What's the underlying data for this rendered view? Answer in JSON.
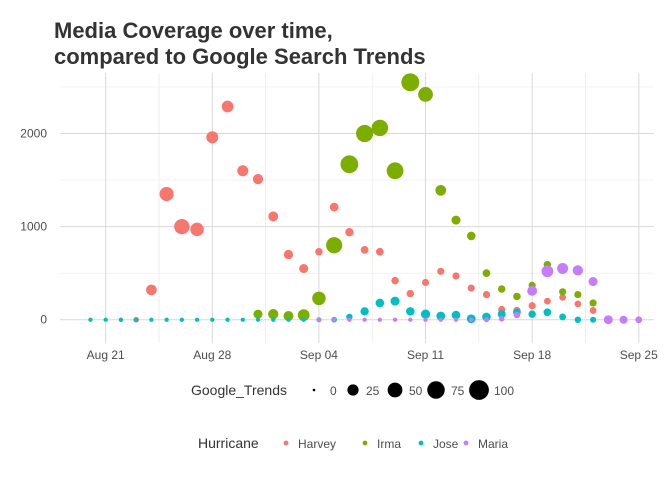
{
  "chart_data": {
    "type": "scatter",
    "title": [
      "Media Coverage over time,",
      "compared to Google Search Trends"
    ],
    "xlabel": "",
    "ylabel": "",
    "x_range": [
      "2017-08-18",
      "2017-09-26"
    ],
    "y_range": [
      -250,
      2650
    ],
    "x_ticks": [
      {
        "date": "2017-08-21",
        "label": "Aug 21"
      },
      {
        "date": "2017-08-28",
        "label": "Aug 28"
      },
      {
        "date": "2017-09-04",
        "label": "Sep 04"
      },
      {
        "date": "2017-09-11",
        "label": "Sep 11"
      },
      {
        "date": "2017-09-18",
        "label": "Sep 18"
      },
      {
        "date": "2017-09-25",
        "label": "Sep 25"
      }
    ],
    "y_ticks": [
      0,
      1000,
      2000
    ],
    "grid": true,
    "series": [
      {
        "name": "Harvey",
        "color": "#F8766D",
        "points": [
          {
            "x": "2017-08-20",
            "y": 0,
            "size": 0
          },
          {
            "x": "2017-08-21",
            "y": 0,
            "size": 0
          },
          {
            "x": "2017-08-22",
            "y": 0,
            "size": 1
          },
          {
            "x": "2017-08-23",
            "y": 0,
            "size": 3
          },
          {
            "x": "2017-08-24",
            "y": 320,
            "size": 22
          },
          {
            "x": "2017-08-25",
            "y": 1350,
            "size": 45
          },
          {
            "x": "2017-08-26",
            "y": 1000,
            "size": 55
          },
          {
            "x": "2017-08-27",
            "y": 970,
            "size": 40
          },
          {
            "x": "2017-08-28",
            "y": 1960,
            "size": 30
          },
          {
            "x": "2017-08-29",
            "y": 2290,
            "size": 28
          },
          {
            "x": "2017-08-30",
            "y": 1600,
            "size": 24
          },
          {
            "x": "2017-08-31",
            "y": 1510,
            "size": 20
          },
          {
            "x": "2017-09-01",
            "y": 1110,
            "size": 18
          },
          {
            "x": "2017-09-02",
            "y": 700,
            "size": 15
          },
          {
            "x": "2017-09-03",
            "y": 550,
            "size": 14
          },
          {
            "x": "2017-09-04",
            "y": 730,
            "size": 8
          },
          {
            "x": "2017-09-05",
            "y": 1210,
            "size": 13
          },
          {
            "x": "2017-09-06",
            "y": 940,
            "size": 11
          },
          {
            "x": "2017-09-07",
            "y": 750,
            "size": 9
          },
          {
            "x": "2017-09-08",
            "y": 730,
            "size": 9
          },
          {
            "x": "2017-09-09",
            "y": 420,
            "size": 8
          },
          {
            "x": "2017-09-10",
            "y": 280,
            "size": 8
          },
          {
            "x": "2017-09-11",
            "y": 400,
            "size": 7
          },
          {
            "x": "2017-09-12",
            "y": 520,
            "size": 7
          },
          {
            "x": "2017-09-13",
            "y": 470,
            "size": 7
          },
          {
            "x": "2017-09-14",
            "y": 340,
            "size": 7
          },
          {
            "x": "2017-09-15",
            "y": 270,
            "size": 7
          },
          {
            "x": "2017-09-16",
            "y": 110,
            "size": 7
          },
          {
            "x": "2017-09-17",
            "y": 100,
            "size": 7
          },
          {
            "x": "2017-09-18",
            "y": 150,
            "size": 7
          },
          {
            "x": "2017-09-19",
            "y": 200,
            "size": 6
          },
          {
            "x": "2017-09-20",
            "y": 240,
            "size": 6
          },
          {
            "x": "2017-09-21",
            "y": 170,
            "size": 6
          },
          {
            "x": "2017-09-22",
            "y": 100,
            "size": 6
          },
          {
            "x": "2017-09-23",
            "y": 0,
            "size": 5
          },
          {
            "x": "2017-09-24",
            "y": 0,
            "size": 5
          },
          {
            "x": "2017-09-25",
            "y": 0,
            "size": 4
          }
        ]
      },
      {
        "name": "Irma",
        "color": "#7CAE00",
        "points": [
          {
            "x": "2017-08-31",
            "y": 60,
            "size": 14
          },
          {
            "x": "2017-09-01",
            "y": 60,
            "size": 20
          },
          {
            "x": "2017-09-02",
            "y": 40,
            "size": 18
          },
          {
            "x": "2017-09-03",
            "y": 50,
            "size": 28
          },
          {
            "x": "2017-09-04",
            "y": 230,
            "size": 40
          },
          {
            "x": "2017-09-05",
            "y": 800,
            "size": 62
          },
          {
            "x": "2017-09-06",
            "y": 1670,
            "size": 78
          },
          {
            "x": "2017-09-07",
            "y": 2000,
            "size": 72
          },
          {
            "x": "2017-09-08",
            "y": 2060,
            "size": 65
          },
          {
            "x": "2017-09-09",
            "y": 1600,
            "size": 68
          },
          {
            "x": "2017-09-10",
            "y": 2550,
            "size": 80
          },
          {
            "x": "2017-09-11",
            "y": 2420,
            "size": 50
          },
          {
            "x": "2017-09-12",
            "y": 1390,
            "size": 22
          },
          {
            "x": "2017-09-13",
            "y": 1070,
            "size": 14
          },
          {
            "x": "2017-09-14",
            "y": 900,
            "size": 12
          },
          {
            "x": "2017-09-15",
            "y": 500,
            "size": 9
          },
          {
            "x": "2017-09-16",
            "y": 330,
            "size": 8
          },
          {
            "x": "2017-09-17",
            "y": 250,
            "size": 8
          },
          {
            "x": "2017-09-18",
            "y": 370,
            "size": 7
          },
          {
            "x": "2017-09-19",
            "y": 590,
            "size": 8
          },
          {
            "x": "2017-09-20",
            "y": 300,
            "size": 7
          },
          {
            "x": "2017-09-21",
            "y": 270,
            "size": 7
          },
          {
            "x": "2017-09-22",
            "y": 180,
            "size": 7
          }
        ]
      },
      {
        "name": "Jose",
        "color": "#00BFC4",
        "points": [
          {
            "x": "2017-08-20",
            "y": 0,
            "size": 1
          },
          {
            "x": "2017-08-21",
            "y": 0,
            "size": 1
          },
          {
            "x": "2017-08-22",
            "y": 0,
            "size": 1
          },
          {
            "x": "2017-08-23",
            "y": 0,
            "size": 1
          },
          {
            "x": "2017-08-24",
            "y": 0,
            "size": 1
          },
          {
            "x": "2017-08-25",
            "y": 0,
            "size": 1
          },
          {
            "x": "2017-08-26",
            "y": 0,
            "size": 1
          },
          {
            "x": "2017-08-27",
            "y": 0,
            "size": 1
          },
          {
            "x": "2017-08-28",
            "y": 0,
            "size": 1
          },
          {
            "x": "2017-08-29",
            "y": 0,
            "size": 1
          },
          {
            "x": "2017-08-30",
            "y": 0,
            "size": 1
          },
          {
            "x": "2017-08-31",
            "y": 0,
            "size": 1
          },
          {
            "x": "2017-09-01",
            "y": 0,
            "size": 1
          },
          {
            "x": "2017-09-02",
            "y": 0,
            "size": 1
          },
          {
            "x": "2017-09-03",
            "y": 0,
            "size": 1
          },
          {
            "x": "2017-09-04",
            "y": 0,
            "size": 2
          },
          {
            "x": "2017-09-05",
            "y": 0,
            "size": 3
          },
          {
            "x": "2017-09-06",
            "y": 30,
            "size": 5
          },
          {
            "x": "2017-09-07",
            "y": 90,
            "size": 11
          },
          {
            "x": "2017-09-08",
            "y": 180,
            "size": 12
          },
          {
            "x": "2017-09-09",
            "y": 200,
            "size": 14
          },
          {
            "x": "2017-09-10",
            "y": 90,
            "size": 12
          },
          {
            "x": "2017-09-11",
            "y": 60,
            "size": 15
          },
          {
            "x": "2017-09-12",
            "y": 40,
            "size": 13
          },
          {
            "x": "2017-09-13",
            "y": 50,
            "size": 12
          },
          {
            "x": "2017-09-14",
            "y": 10,
            "size": 13
          },
          {
            "x": "2017-09-15",
            "y": 30,
            "size": 12
          },
          {
            "x": "2017-09-16",
            "y": 60,
            "size": 10
          },
          {
            "x": "2017-09-17",
            "y": 80,
            "size": 9
          },
          {
            "x": "2017-09-18",
            "y": 60,
            "size": 8
          },
          {
            "x": "2017-09-19",
            "y": 80,
            "size": 9
          },
          {
            "x": "2017-09-20",
            "y": 30,
            "size": 6
          },
          {
            "x": "2017-09-21",
            "y": 0,
            "size": 5
          },
          {
            "x": "2017-09-22",
            "y": 0,
            "size": 4
          },
          {
            "x": "2017-09-23",
            "y": 0,
            "size": 4
          },
          {
            "x": "2017-09-24",
            "y": 0,
            "size": 4
          },
          {
            "x": "2017-09-25",
            "y": 0,
            "size": 3
          }
        ]
      },
      {
        "name": "Maria",
        "color": "#C77CFF",
        "points": [
          {
            "x": "2017-09-04",
            "y": 0,
            "size": 1
          },
          {
            "x": "2017-09-05",
            "y": 0,
            "size": 1
          },
          {
            "x": "2017-09-06",
            "y": 0,
            "size": 1
          },
          {
            "x": "2017-09-07",
            "y": 0,
            "size": 1
          },
          {
            "x": "2017-09-08",
            "y": 0,
            "size": 1
          },
          {
            "x": "2017-09-09",
            "y": 0,
            "size": 1
          },
          {
            "x": "2017-09-10",
            "y": 0,
            "size": 1
          },
          {
            "x": "2017-09-11",
            "y": 0,
            "size": 1
          },
          {
            "x": "2017-09-12",
            "y": 0,
            "size": 1
          },
          {
            "x": "2017-09-13",
            "y": 0,
            "size": 1
          },
          {
            "x": "2017-09-14",
            "y": 0,
            "size": 1
          },
          {
            "x": "2017-09-15",
            "y": 0,
            "size": 2
          },
          {
            "x": "2017-09-16",
            "y": 10,
            "size": 3
          },
          {
            "x": "2017-09-17",
            "y": 50,
            "size": 5
          },
          {
            "x": "2017-09-18",
            "y": 310,
            "size": 18
          },
          {
            "x": "2017-09-19",
            "y": 520,
            "size": 28
          },
          {
            "x": "2017-09-20",
            "y": 550,
            "size": 24
          },
          {
            "x": "2017-09-21",
            "y": 530,
            "size": 20
          },
          {
            "x": "2017-09-22",
            "y": 410,
            "size": 14
          },
          {
            "x": "2017-09-23",
            "y": 0,
            "size": 14
          },
          {
            "x": "2017-09-24",
            "y": 0,
            "size": 10
          },
          {
            "x": "2017-09-25",
            "y": 0,
            "size": 6
          }
        ]
      }
    ],
    "size_legend": {
      "title": "Google_Trends",
      "breaks": [
        0,
        25,
        50,
        75,
        100
      ],
      "labels": [
        "0",
        "25",
        "50",
        "75",
        "100"
      ]
    },
    "color_legend": {
      "title": "Hurricane",
      "entries": [
        "Harvey",
        "Irma",
        "Jose",
        "Maria"
      ]
    },
    "legend_placement": "bottom"
  }
}
